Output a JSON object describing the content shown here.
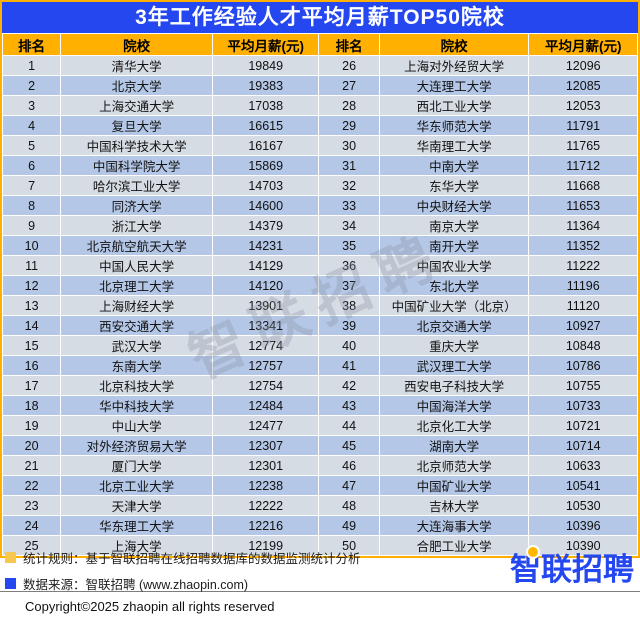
{
  "title": "3年工作经验人才平均月薪TOP50院校",
  "watermark": "智联招聘",
  "colors": {
    "title_bar_blue": "#2447F0",
    "header_orange": "#FFB000",
    "outer_border_orange": "#FFAF00",
    "row_light": "#D6DCE4",
    "row_medium": "#B4C7E7",
    "legend_yellow": "#F7C84F",
    "legend_blue": "#2447F0",
    "logo_blue": "#2447F0",
    "logo_dot_yellow": "#FFB800"
  },
  "chart_data": {
    "type": "table",
    "title": "3年工作经验人才平均月薪TOP50院校",
    "columns": [
      "排名",
      "院校",
      "平均月薪(元)",
      "排名",
      "院校",
      "平均月薪(元)"
    ],
    "rows_left": [
      {
        "rank": "1",
        "school": "清华大学",
        "salary": "19849"
      },
      {
        "rank": "2",
        "school": "北京大学",
        "salary": "19383"
      },
      {
        "rank": "3",
        "school": "上海交通大学",
        "salary": "17038"
      },
      {
        "rank": "4",
        "school": "复旦大学",
        "salary": "16615"
      },
      {
        "rank": "5",
        "school": "中国科学技术大学",
        "salary": "16167"
      },
      {
        "rank": "6",
        "school": "中国科学院大学",
        "salary": "15869"
      },
      {
        "rank": "7",
        "school": "哈尔滨工业大学",
        "salary": "14703"
      },
      {
        "rank": "8",
        "school": "同济大学",
        "salary": "14600"
      },
      {
        "rank": "9",
        "school": "浙江大学",
        "salary": "14379"
      },
      {
        "rank": "10",
        "school": "北京航空航天大学",
        "salary": "14231"
      },
      {
        "rank": "11",
        "school": "中国人民大学",
        "salary": "14129"
      },
      {
        "rank": "12",
        "school": "北京理工大学",
        "salary": "14120"
      },
      {
        "rank": "13",
        "school": "上海财经大学",
        "salary": "13901"
      },
      {
        "rank": "14",
        "school": "西安交通大学",
        "salary": "13341"
      },
      {
        "rank": "15",
        "school": "武汉大学",
        "salary": "12774"
      },
      {
        "rank": "16",
        "school": "东南大学",
        "salary": "12757"
      },
      {
        "rank": "17",
        "school": "北京科技大学",
        "salary": "12754"
      },
      {
        "rank": "18",
        "school": "华中科技大学",
        "salary": "12484"
      },
      {
        "rank": "19",
        "school": "中山大学",
        "salary": "12477"
      },
      {
        "rank": "20",
        "school": "对外经济贸易大学",
        "salary": "12307"
      },
      {
        "rank": "21",
        "school": "厦门大学",
        "salary": "12301"
      },
      {
        "rank": "22",
        "school": "北京工业大学",
        "salary": "12238"
      },
      {
        "rank": "23",
        "school": "天津大学",
        "salary": "12222"
      },
      {
        "rank": "24",
        "school": "华东理工大学",
        "salary": "12216"
      },
      {
        "rank": "25",
        "school": "上海大学",
        "salary": "12199"
      }
    ],
    "rows_right": [
      {
        "rank": "26",
        "school": "上海对外经贸大学",
        "salary": "12096"
      },
      {
        "rank": "27",
        "school": "大连理工大学",
        "salary": "12085"
      },
      {
        "rank": "28",
        "school": "西北工业大学",
        "salary": "12053"
      },
      {
        "rank": "29",
        "school": "华东师范大学",
        "salary": "11791"
      },
      {
        "rank": "30",
        "school": "华南理工大学",
        "salary": "11765"
      },
      {
        "rank": "31",
        "school": "中南大学",
        "salary": "11712"
      },
      {
        "rank": "32",
        "school": "东华大学",
        "salary": "11668"
      },
      {
        "rank": "33",
        "school": "中央财经大学",
        "salary": "11653"
      },
      {
        "rank": "34",
        "school": "南京大学",
        "salary": "11364"
      },
      {
        "rank": "35",
        "school": "南开大学",
        "salary": "11352"
      },
      {
        "rank": "36",
        "school": "中国农业大学",
        "salary": "11222"
      },
      {
        "rank": "37",
        "school": "东北大学",
        "salary": "11196"
      },
      {
        "rank": "38",
        "school": "中国矿业大学（北京）",
        "salary": "11120"
      },
      {
        "rank": "39",
        "school": "北京交通大学",
        "salary": "10927"
      },
      {
        "rank": "40",
        "school": "重庆大学",
        "salary": "10848"
      },
      {
        "rank": "41",
        "school": "武汉理工大学",
        "salary": "10786"
      },
      {
        "rank": "42",
        "school": "西安电子科技大学",
        "salary": "10755"
      },
      {
        "rank": "43",
        "school": "中国海洋大学",
        "salary": "10733"
      },
      {
        "rank": "44",
        "school": "北京化工大学",
        "salary": "10721"
      },
      {
        "rank": "45",
        "school": "湖南大学",
        "salary": "10714"
      },
      {
        "rank": "46",
        "school": "北京师范大学",
        "salary": "10633"
      },
      {
        "rank": "47",
        "school": "中国矿业大学",
        "salary": "10541"
      },
      {
        "rank": "48",
        "school": "吉林大学",
        "salary": "10530"
      },
      {
        "rank": "49",
        "school": "大连海事大学",
        "salary": "10396"
      },
      {
        "rank": "50",
        "school": "合肥工业大学",
        "salary": "10390"
      }
    ]
  },
  "footer": {
    "note1": "统计规则：基于智联招聘在线招聘数据库的数据监测统计分析",
    "note2": "数据来源：智联招聘 (www.zhaopin.com)",
    "logo_text": "智联招聘",
    "copyright": "Copyright©2025 zhaopin all rights reserved"
  }
}
